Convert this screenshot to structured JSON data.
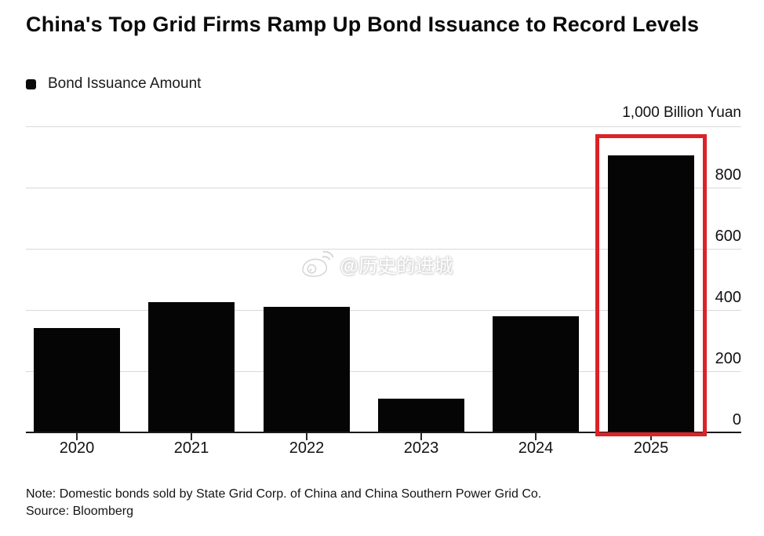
{
  "header": {
    "title": "China's Top Grid Firms Ramp Up Bond Issuance to Record Levels"
  },
  "legend": {
    "label": "Bond Issuance Amount",
    "swatch_color": "#0a0a0a"
  },
  "chart_data": {
    "type": "bar",
    "title": "China's Top Grid Firms Ramp Up Bond Issuance to Record Levels",
    "series_name": "Bond Issuance Amount",
    "categories": [
      "2020",
      "2021",
      "2022",
      "2023",
      "2024",
      "2025"
    ],
    "values": [
      340,
      425,
      410,
      110,
      380,
      905
    ],
    "unit_label": "1,000 Billion Yuan",
    "xlabel": "",
    "ylabel": "1,000 Billion Yuan",
    "ylim": [
      0,
      1000
    ],
    "yticks": [
      0,
      200,
      400,
      600,
      800
    ],
    "ytick_labels": [
      "0",
      "200",
      "400",
      "600",
      "800"
    ],
    "gridline_values": [
      200,
      400,
      600,
      800,
      1000
    ],
    "grid": "horizontal",
    "legend_position": "top-left",
    "bar_color": "#050505",
    "highlight": {
      "category": "2025",
      "box_color": "#dd2128"
    }
  },
  "watermark": {
    "icon": "weibo-icon",
    "text": "@历史的进城"
  },
  "notes": {
    "note": "Note: Domestic bonds sold by State Grid Corp. of China and China Southern Power Grid Co.",
    "source": "Source: Bloomberg"
  },
  "colors": {
    "background": "#ffffff",
    "gridline": "#d9d9d9",
    "axis": "#1a1a1a",
    "text": "#0a0a0a",
    "highlight_red": "#dd2128"
  }
}
